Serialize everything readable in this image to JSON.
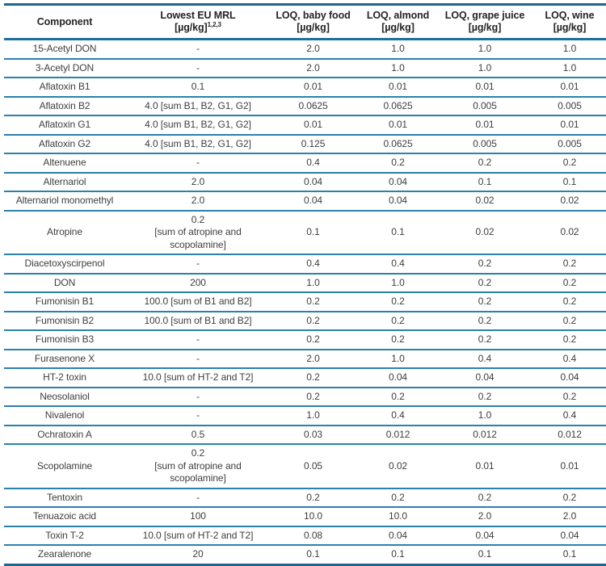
{
  "colors": {
    "table_outer_border": "#1d6690",
    "header_rule": "#1f6f9e",
    "row_rule": "#2b80ae",
    "text": "#3e3e3e",
    "header_text": "#242424",
    "background": "#ffffff"
  },
  "table": {
    "header": {
      "columns": [
        {
          "label": "Component",
          "line1": "Component",
          "line2": "",
          "sup": ""
        },
        {
          "line1": "Lowest EU MRL",
          "line2": "[µg/kg]",
          "sup": "1,2,3"
        },
        {
          "line1": "LOQ, baby food",
          "line2": "[µg/kg]",
          "sup": ""
        },
        {
          "line1": "LOQ, almond",
          "line2": "[µg/kg]",
          "sup": ""
        },
        {
          "line1": "LOQ, grape juice",
          "line2": "[µg/kg]",
          "sup": ""
        },
        {
          "line1": "LOQ, wine",
          "line2": "[µg/kg]",
          "sup": ""
        }
      ]
    },
    "rows": [
      {
        "component": "15-Acetyl DON",
        "mrl": "-",
        "loq_baby_food": "2.0",
        "loq_almond": "1.0",
        "loq_grape_juice": "1.0",
        "loq_wine": "1.0"
      },
      {
        "component": "3-Acetyl DON",
        "mrl": "-",
        "loq_baby_food": "2.0",
        "loq_almond": "1.0",
        "loq_grape_juice": "1.0",
        "loq_wine": "1.0"
      },
      {
        "component": "Aflatoxin B1",
        "mrl": "0.1",
        "loq_baby_food": "0.01",
        "loq_almond": "0.01",
        "loq_grape_juice": "0.01",
        "loq_wine": "0.01"
      },
      {
        "component": "Aflatoxin B2",
        "mrl": "4.0 [sum B1, B2, G1, G2]",
        "loq_baby_food": "0.0625",
        "loq_almond": "0.0625",
        "loq_grape_juice": "0.005",
        "loq_wine": "0.005"
      },
      {
        "component": "Aflatoxin G1",
        "mrl": "4.0 [sum B1, B2, G1, G2]",
        "loq_baby_food": "0.01",
        "loq_almond": "0.01",
        "loq_grape_juice": "0.01",
        "loq_wine": "0.01"
      },
      {
        "component": "Aflatoxin G2",
        "mrl": "4.0 [sum B1, B2, G1, G2]",
        "loq_baby_food": "0.125",
        "loq_almond": "0.0625",
        "loq_grape_juice": "0.005",
        "loq_wine": "0.005"
      },
      {
        "component": "Altenuene",
        "mrl": "-",
        "loq_baby_food": "0.4",
        "loq_almond": "0.2",
        "loq_grape_juice": "0.2",
        "loq_wine": "0.2"
      },
      {
        "component": "Alternariol",
        "mrl": "2.0",
        "loq_baby_food": "0.04",
        "loq_almond": "0.04",
        "loq_grape_juice": "0.1",
        "loq_wine": "0.1"
      },
      {
        "component": "Alternariol monomethyl",
        "mrl": "2.0",
        "loq_baby_food": "0.04",
        "loq_almond": "0.04",
        "loq_grape_juice": "0.02",
        "loq_wine": "0.02"
      },
      {
        "component": "Atropine",
        "mrl": "0.2\n[sum of atropine and\nscopolamine]",
        "loq_baby_food": "0.1",
        "loq_almond": "0.1",
        "loq_grape_juice": "0.02",
        "loq_wine": "0.02"
      },
      {
        "component": "Diacetoxyscirpenol",
        "mrl": "-",
        "loq_baby_food": "0.4",
        "loq_almond": "0.4",
        "loq_grape_juice": "0.2",
        "loq_wine": "0.2"
      },
      {
        "component": "DON",
        "mrl": "200",
        "loq_baby_food": "1.0",
        "loq_almond": "1.0",
        "loq_grape_juice": "0.2",
        "loq_wine": "0.2"
      },
      {
        "component": "Fumonisin B1",
        "mrl": "100.0 [sum of B1 and B2]",
        "loq_baby_food": "0.2",
        "loq_almond": "0.2",
        "loq_grape_juice": "0.2",
        "loq_wine": "0.2"
      },
      {
        "component": "Fumonisin B2",
        "mrl": "100.0 [sum of B1 and B2]",
        "loq_baby_food": "0.2",
        "loq_almond": "0.2",
        "loq_grape_juice": "0.2",
        "loq_wine": "0.2"
      },
      {
        "component": "Fumonisin B3",
        "mrl": "-",
        "loq_baby_food": "0.2",
        "loq_almond": "0.2",
        "loq_grape_juice": "0.2",
        "loq_wine": "0.2"
      },
      {
        "component": "Furasenone X",
        "mrl": "-",
        "loq_baby_food": "2.0",
        "loq_almond": "1.0",
        "loq_grape_juice": "0.4",
        "loq_wine": "0.4"
      },
      {
        "component": "HT-2 toxin",
        "mrl": "10.0 [sum of HT-2 and T2]",
        "loq_baby_food": "0.2",
        "loq_almond": "0.04",
        "loq_grape_juice": "0.04",
        "loq_wine": "0.04"
      },
      {
        "component": "Neosolaniol",
        "mrl": "-",
        "loq_baby_food": "0.2",
        "loq_almond": "0.2",
        "loq_grape_juice": "0.2",
        "loq_wine": "0.2"
      },
      {
        "component": "Nivalenol",
        "mrl": "-",
        "loq_baby_food": "1.0",
        "loq_almond": "0.4",
        "loq_grape_juice": "1.0",
        "loq_wine": "0.4"
      },
      {
        "component": "Ochratoxin A",
        "mrl": "0.5",
        "loq_baby_food": "0.03",
        "loq_almond": "0.012",
        "loq_grape_juice": "0.012",
        "loq_wine": "0.012"
      },
      {
        "component": "Scopolamine",
        "mrl": "0.2\n[sum of atropine and\nscopolamine]",
        "loq_baby_food": "0.05",
        "loq_almond": "0.02",
        "loq_grape_juice": "0.01",
        "loq_wine": "0.01"
      },
      {
        "component": "Tentoxin",
        "mrl": "-",
        "loq_baby_food": "0.2",
        "loq_almond": "0.2",
        "loq_grape_juice": "0.2",
        "loq_wine": "0.2"
      },
      {
        "component": "Tenuazoic acid",
        "mrl": "100",
        "loq_baby_food": "10.0",
        "loq_almond": "10.0",
        "loq_grape_juice": "2.0",
        "loq_wine": "2.0"
      },
      {
        "component": "Toxin T-2",
        "mrl": "10.0 [sum of HT-2 and T2]",
        "loq_baby_food": "0.08",
        "loq_almond": "0.04",
        "loq_grape_juice": "0.04",
        "loq_wine": "0.04"
      },
      {
        "component": "Zearalenone",
        "mrl": "20",
        "loq_baby_food": "0.1",
        "loq_almond": "0.1",
        "loq_grape_juice": "0.1",
        "loq_wine": "0.1"
      }
    ]
  }
}
